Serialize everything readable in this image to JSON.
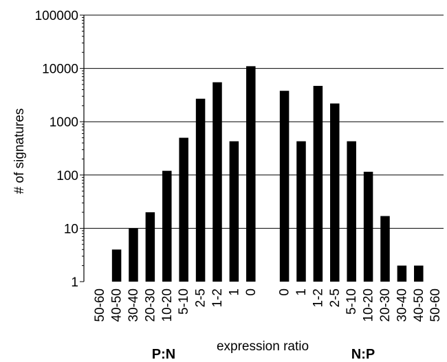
{
  "chart_data": {
    "type": "bar",
    "scale": "log",
    "ylim": [
      1,
      100000
    ],
    "yticks": [
      "1",
      "10",
      "100",
      "1000",
      "10000",
      "100000"
    ],
    "ylabel": "# of signatures",
    "xlabel": "expression ratio",
    "group_labels": [
      "P:N",
      "N:P"
    ],
    "grid": true,
    "bar_color": "#000000",
    "categories": [
      "50-60",
      "40-50",
      "30-40",
      "20-30",
      "10-20",
      "5-10",
      "2-5",
      "1-2",
      "1",
      "0",
      "0",
      "1",
      "1-2",
      "2-5",
      "5-10",
      "10-20",
      "20-30",
      "30-40",
      "40-50",
      "50-60"
    ],
    "values": [
      0,
      4,
      10,
      20,
      120,
      500,
      2700,
      5500,
      430,
      11000,
      3800,
      430,
      4700,
      2200,
      430,
      115,
      17,
      2,
      2,
      0
    ]
  }
}
